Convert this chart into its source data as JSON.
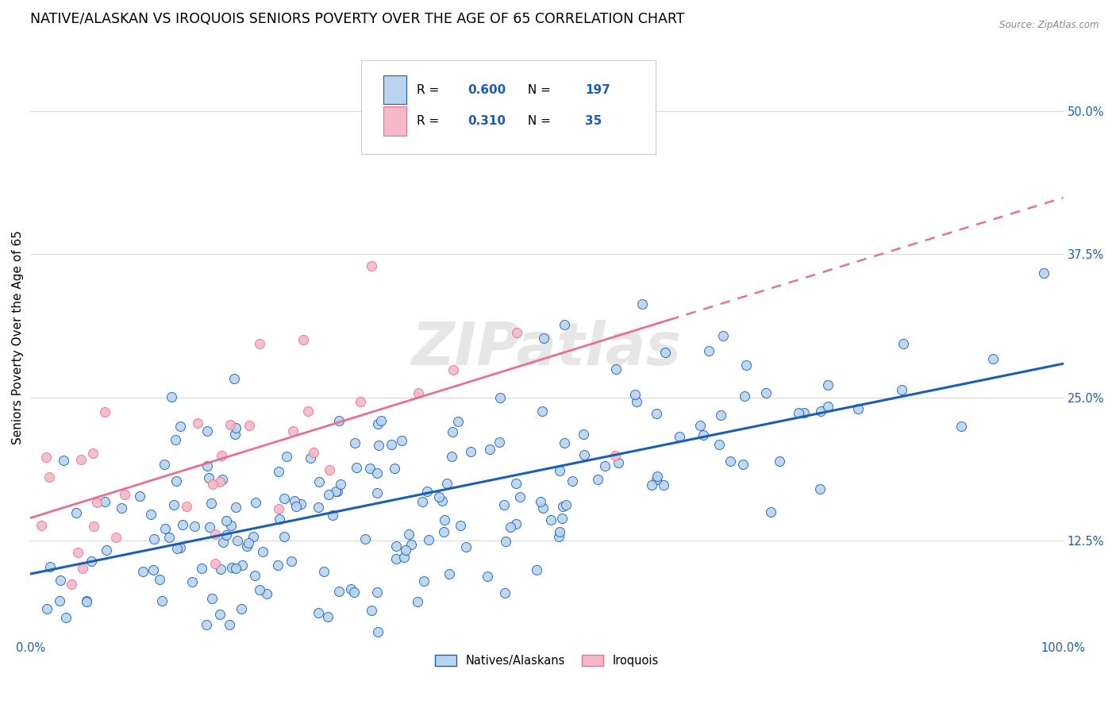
{
  "title": "NATIVE/ALASKAN VS IROQUOIS SENIORS POVERTY OVER THE AGE OF 65 CORRELATION CHART",
  "source": "Source: ZipAtlas.com",
  "ylabel": "Seniors Poverty Over the Age of 65",
  "xlim": [
    0,
    1
  ],
  "ylim": [
    0.04,
    0.565
  ],
  "yticks": [
    0.125,
    0.25,
    0.375,
    0.5
  ],
  "ytick_labels": [
    "12.5%",
    "25.0%",
    "37.5%",
    "50.0%"
  ],
  "xticks": [
    0.0,
    0.25,
    0.5,
    0.75,
    1.0
  ],
  "xtick_labels": [
    "0.0%",
    "",
    "",
    "",
    "100.0%"
  ],
  "legend1_label": "Natives/Alaskans",
  "legend2_label": "Iroquois",
  "r1": 0.6,
  "n1": 197,
  "r2": 0.31,
  "n2": 35,
  "blue_color": "#b8d4f0",
  "blue_line_color": "#1a5fb4",
  "pink_color": "#f5b8c8",
  "pink_line_color": "#e87090",
  "watermark": "ZIPatlas",
  "background_color": "#ffffff",
  "grid_color": "#d8d8d8",
  "title_fontsize": 12.5,
  "axis_label_fontsize": 11,
  "tick_fontsize": 10.5,
  "seed": 42,
  "blue_slope": 0.175,
  "blue_intercept": 0.095,
  "blue_noise": 0.052,
  "pink_slope": 0.28,
  "pink_intercept": 0.13,
  "pink_noise": 0.048
}
